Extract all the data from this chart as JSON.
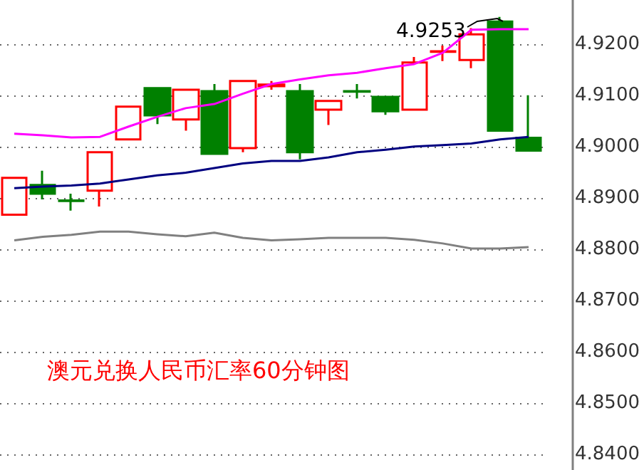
{
  "chart_data": {
    "type": "candlestick",
    "title": "澳元兑换人民币汇率60分钟图",
    "categories": [
      null,
      null,
      null,
      null,
      null,
      null,
      null,
      null,
      null,
      null,
      null,
      null,
      null,
      null,
      null,
      null,
      null,
      null,
      null
    ],
    "ohlc": [
      [
        4.8867,
        4.8939,
        4.8867,
        4.8939
      ],
      [
        4.8925,
        4.8953,
        4.8897,
        4.8908
      ],
      [
        4.8895,
        4.8908,
        4.8875,
        4.8894
      ],
      [
        4.8914,
        4.8989,
        4.8883,
        4.8989
      ],
      [
        4.9014,
        4.9078,
        4.9014,
        4.9078
      ],
      [
        4.9114,
        4.9114,
        4.9044,
        4.9061
      ],
      [
        4.9053,
        4.9111,
        4.9031,
        4.9111
      ],
      [
        4.9108,
        4.9122,
        4.8986,
        4.8986
      ],
      [
        4.8997,
        4.9128,
        4.8989,
        4.9128
      ],
      [
        4.9118,
        4.9128,
        4.9111,
        4.9121
      ],
      [
        4.9108,
        4.9122,
        4.8975,
        4.8989
      ],
      [
        4.9072,
        4.9089,
        4.9042,
        4.9089
      ],
      [
        4.9108,
        4.9122,
        4.9094,
        4.9107
      ],
      [
        4.9097,
        4.9097,
        4.9062,
        4.9069
      ],
      [
        4.9072,
        4.9175,
        4.9072,
        4.9164
      ],
      [
        4.9185,
        4.9197,
        4.9167,
        4.9186
      ],
      [
        4.9169,
        4.9231,
        4.9153,
        4.9219
      ],
      [
        4.9244,
        4.9253,
        4.9031,
        4.9031
      ],
      [
        4.9017,
        4.91,
        4.8992,
        4.8992
      ]
    ],
    "colors": [
      "#ff0000",
      "#008000",
      "#008000",
      "#ff0000",
      "#ff0000",
      "#008000",
      "#ff0000",
      "#008000",
      "#ff0000",
      "#ff0000",
      "#008000",
      "#ff0000",
      "#008000",
      "#008000",
      "#ff0000",
      "#ff0000",
      "#ff0000",
      "#008000",
      "#008000"
    ],
    "series": [
      {
        "type": "line",
        "color": "#ff00ff",
        "values": [
          4.9025,
          4.9022,
          4.9018,
          4.9019,
          4.9039,
          4.9058,
          4.9075,
          4.9083,
          4.9103,
          4.9122,
          4.9131,
          4.9139,
          4.9144,
          4.9153,
          4.9161,
          4.9183,
          4.9228,
          4.9229,
          4.9229
        ]
      },
      {
        "type": "line",
        "color": "#000080",
        "values": [
          4.8919,
          4.8922,
          4.8924,
          4.8928,
          4.8936,
          4.8944,
          4.8949,
          4.8958,
          4.8967,
          4.8972,
          4.8972,
          4.8979,
          4.8989,
          4.8994,
          4.9,
          4.9003,
          4.9006,
          4.9014,
          4.9019
        ]
      },
      {
        "type": "line",
        "color": "#808080",
        "values": [
          4.8817,
          4.8824,
          4.8828,
          4.8834,
          4.8834,
          4.8829,
          4.8825,
          4.8832,
          4.8822,
          4.8817,
          4.8819,
          4.8822,
          4.8822,
          4.8822,
          4.8818,
          4.8811,
          4.8801,
          4.8801,
          4.8804
        ]
      }
    ],
    "annotations": [
      "4.9253"
    ],
    "ylim": [
      4.8369,
      4.9286
    ],
    "yticks": [
      {
        "value": 4.84,
        "label": "4.8400"
      },
      {
        "value": 4.85,
        "label": "4.8500"
      },
      {
        "value": 4.86,
        "label": "4.8600"
      },
      {
        "value": 4.87,
        "label": "4.8700"
      },
      {
        "value": 4.88,
        "label": "4.8800"
      },
      {
        "value": 4.89,
        "label": "4.8900"
      },
      {
        "value": 4.9,
        "label": "4.9000"
      },
      {
        "value": 4.91,
        "label": "4.9100"
      },
      {
        "value": 4.92,
        "label": "4.9200"
      }
    ],
    "grid": "y",
    "tick_labels": "y"
  }
}
